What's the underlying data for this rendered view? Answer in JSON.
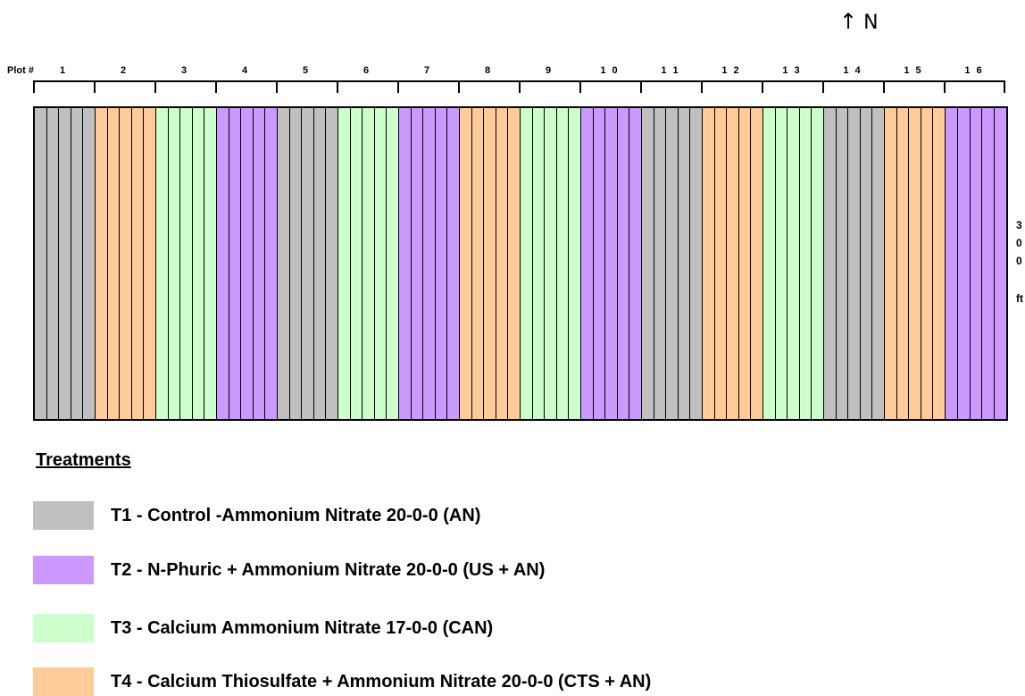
{
  "north": {
    "arrow": "↑",
    "label": "N"
  },
  "plot_label": "Plot #",
  "plots": [
    "1",
    "2",
    "3",
    "4",
    "5",
    "6",
    "7",
    "8",
    "9",
    "1 0",
    "1 1",
    "1 2",
    "1 3",
    "1 4",
    "1 5",
    "1 6"
  ],
  "plot_treatments": [
    "T1",
    "T4",
    "T3",
    "T2",
    "T1",
    "T3",
    "T2",
    "T4",
    "T3",
    "T2",
    "T1",
    "T4",
    "T3",
    "T1",
    "T4",
    "T2"
  ],
  "rows_per_plot": 5,
  "dimension_text": [
    "3",
    "0",
    "0",
    "ft"
  ],
  "treatments_title": "Treatments",
  "treatments": [
    {
      "id": "T1",
      "label": "T1 - Control -Ammonium Nitrate 20-0-0  (AN)",
      "color": "#c0c0c0"
    },
    {
      "id": "T2",
      "label": "T2 - N-Phuric + Ammonium Nitrate 20-0-0  (US + AN)",
      "color": "#cc99ff"
    },
    {
      "id": "T3",
      "label": "T3 - Calcium Ammonium Nitrate 17-0-0  (CAN)",
      "color": "#ccffcc"
    },
    {
      "id": "T4",
      "label": "T4 - Calcium Thiosulfate + Ammonium Nitrate 20-0-0  (CTS + AN)",
      "color": "#ffcc99"
    }
  ]
}
